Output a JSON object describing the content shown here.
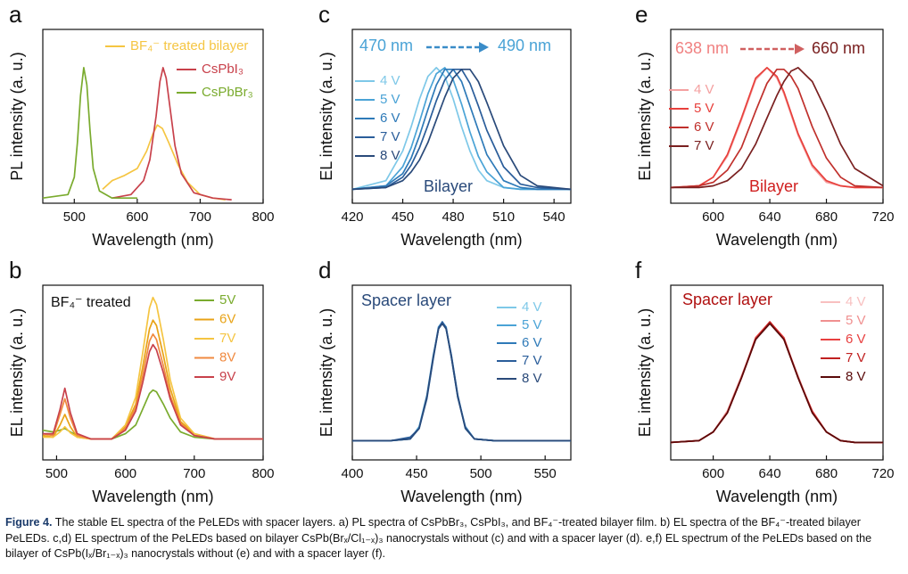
{
  "chart_data": [
    {
      "type": "line",
      "label": "a",
      "xlabel": "Wavelength (nm)",
      "ylabel": "PL intensity (a. u.)",
      "xlim": [
        450,
        800
      ],
      "xticks": [
        500,
        600,
        700,
        800
      ],
      "ylim": [
        0,
        1
      ],
      "series": [
        {
          "name": "BF₄⁻ treated bilayer",
          "color": "#f5c542",
          "x": [
            545,
            560,
            580,
            600,
            615,
            625,
            632,
            640,
            650,
            665,
            680,
            700,
            720,
            740
          ],
          "values": [
            0.08,
            0.13,
            0.16,
            0.2,
            0.3,
            0.4,
            0.45,
            0.43,
            0.35,
            0.22,
            0.12,
            0.05,
            0.03,
            0.02
          ]
        },
        {
          "name": "CsPbI₃",
          "color": "#c8414b",
          "x": [
            560,
            590,
            610,
            620,
            630,
            636,
            641,
            646,
            652,
            660,
            670,
            690,
            720,
            750
          ],
          "values": [
            0.03,
            0.05,
            0.13,
            0.25,
            0.5,
            0.7,
            0.78,
            0.72,
            0.55,
            0.33,
            0.17,
            0.06,
            0.03,
            0.02
          ]
        },
        {
          "name": "CsPbBr₃",
          "color": "#7aab2e",
          "x": [
            450,
            490,
            500,
            505,
            510,
            515,
            520,
            525,
            530,
            540,
            560,
            600
          ],
          "values": [
            0.03,
            0.05,
            0.15,
            0.35,
            0.62,
            0.78,
            0.68,
            0.42,
            0.2,
            0.07,
            0.03,
            0.03
          ]
        }
      ]
    },
    {
      "type": "line",
      "label": "b",
      "xlabel": "Wavelength (nm)",
      "ylabel": "EL intensity (a. u.)",
      "xlim": [
        480,
        800
      ],
      "xticks": [
        500,
        600,
        700,
        800
      ],
      "ylim": [
        0,
        1
      ],
      "annotations": [
        "BF₄⁻ treated"
      ],
      "x": [
        480,
        495,
        505,
        512,
        520,
        530,
        550,
        580,
        600,
        615,
        625,
        635,
        640,
        645,
        655,
        665,
        680,
        700,
        730,
        760,
        800
      ],
      "series": [
        {
          "name": "5V",
          "color": "#7aab2e",
          "values": [
            0.17,
            0.16,
            0.17,
            0.18,
            0.16,
            0.14,
            0.12,
            0.12,
            0.15,
            0.2,
            0.29,
            0.38,
            0.4,
            0.39,
            0.32,
            0.24,
            0.16,
            0.13,
            0.12,
            0.12,
            0.12
          ]
        },
        {
          "name": "6V",
          "color": "#e8a317",
          "values": [
            0.14,
            0.13,
            0.2,
            0.26,
            0.19,
            0.13,
            0.12,
            0.12,
            0.19,
            0.32,
            0.53,
            0.75,
            0.8,
            0.77,
            0.6,
            0.41,
            0.22,
            0.15,
            0.12,
            0.12,
            0.12
          ]
        },
        {
          "name": "7V",
          "color": "#f5c542",
          "values": [
            0.13,
            0.13,
            0.16,
            0.19,
            0.155,
            0.13,
            0.12,
            0.12,
            0.2,
            0.36,
            0.61,
            0.87,
            0.93,
            0.89,
            0.69,
            0.46,
            0.24,
            0.15,
            0.12,
            0.12,
            0.12
          ]
        },
        {
          "name": "8V",
          "color": "#f08a40",
          "values": [
            0.15,
            0.14,
            0.26,
            0.35,
            0.24,
            0.14,
            0.12,
            0.12,
            0.18,
            0.3,
            0.48,
            0.68,
            0.72,
            0.69,
            0.54,
            0.37,
            0.21,
            0.14,
            0.12,
            0.12,
            0.12
          ]
        },
        {
          "name": "9V",
          "color": "#c8414b",
          "values": [
            0.15,
            0.15,
            0.29,
            0.41,
            0.27,
            0.15,
            0.12,
            0.12,
            0.17,
            0.28,
            0.44,
            0.62,
            0.66,
            0.63,
            0.5,
            0.35,
            0.2,
            0.14,
            0.12,
            0.12,
            0.12
          ]
        }
      ]
    },
    {
      "type": "line",
      "label": "c",
      "xlabel": "Wavelength (nm)",
      "ylabel": "EL intensity (a. u.)",
      "xlim": [
        420,
        550
      ],
      "xticks": [
        420,
        450,
        480,
        510,
        540
      ],
      "ylim": [
        0,
        1
      ],
      "annotations": [
        "470 nm",
        "490 nm",
        "Bilayer"
      ],
      "x": [
        420,
        440,
        450,
        455,
        460,
        465,
        470,
        475,
        480,
        485,
        490,
        495,
        500,
        510,
        520,
        530,
        550
      ],
      "series": [
        {
          "name": "4 V",
          "color": "#7ec8e8",
          "values": [
            0.08,
            0.13,
            0.3,
            0.44,
            0.6,
            0.73,
            0.78,
            0.73,
            0.6,
            0.44,
            0.3,
            0.19,
            0.13,
            0.09,
            0.08,
            0.08,
            0.08
          ]
        },
        {
          "name": "5 V",
          "color": "#4aa3d6",
          "values": [
            0.08,
            0.1,
            0.21,
            0.32,
            0.47,
            0.63,
            0.745,
            0.78,
            0.71,
            0.57,
            0.41,
            0.27,
            0.18,
            0.09,
            0.08,
            0.08,
            0.08
          ]
        },
        {
          "name": "6 V",
          "color": "#2e7ab8",
          "values": [
            0.08,
            0.1,
            0.17,
            0.26,
            0.39,
            0.54,
            0.68,
            0.77,
            0.77,
            0.7,
            0.56,
            0.42,
            0.28,
            0.13,
            0.09,
            0.08,
            0.08
          ]
        },
        {
          "name": "7 V",
          "color": "#2a5d9a",
          "values": [
            0.08,
            0.09,
            0.15,
            0.22,
            0.32,
            0.45,
            0.59,
            0.71,
            0.77,
            0.77,
            0.69,
            0.56,
            0.42,
            0.21,
            0.11,
            0.09,
            0.08
          ]
        },
        {
          "name": "8 V",
          "color": "#2a4a7a",
          "values": [
            0.08,
            0.09,
            0.13,
            0.18,
            0.25,
            0.35,
            0.48,
            0.61,
            0.72,
            0.77,
            0.77,
            0.7,
            0.58,
            0.33,
            0.16,
            0.1,
            0.08
          ]
        }
      ]
    },
    {
      "type": "line",
      "label": "d",
      "xlabel": "Wavelength (nm)",
      "ylabel": "EL intensity (a. u.)",
      "xlim": [
        400,
        570
      ],
      "xticks": [
        400,
        450,
        500,
        550
      ],
      "ylim": [
        0,
        1
      ],
      "annotations": [
        "Spacer layer"
      ],
      "x": [
        400,
        430,
        445,
        452,
        458,
        463,
        467,
        470,
        473,
        477,
        482,
        488,
        495,
        510,
        530,
        570
      ],
      "series": [
        {
          "name": "4 V",
          "color": "#7ec8e8",
          "values": [
            0.11,
            0.11,
            0.12,
            0.18,
            0.36,
            0.59,
            0.75,
            0.79,
            0.75,
            0.59,
            0.36,
            0.18,
            0.12,
            0.11,
            0.11,
            0.11
          ]
        },
        {
          "name": "5 V",
          "color": "#4aa3d6",
          "values": [
            0.11,
            0.11,
            0.12,
            0.19,
            0.37,
            0.6,
            0.75,
            0.79,
            0.75,
            0.6,
            0.37,
            0.18,
            0.12,
            0.11,
            0.11,
            0.11
          ]
        },
        {
          "name": "6 V",
          "color": "#2e7ab8",
          "values": [
            0.11,
            0.11,
            0.12,
            0.18,
            0.36,
            0.59,
            0.76,
            0.79,
            0.76,
            0.59,
            0.36,
            0.19,
            0.12,
            0.11,
            0.11,
            0.11
          ]
        },
        {
          "name": "7 V",
          "color": "#2a5d9a",
          "values": [
            0.11,
            0.11,
            0.13,
            0.18,
            0.35,
            0.58,
            0.75,
            0.79,
            0.75,
            0.6,
            0.37,
            0.18,
            0.12,
            0.11,
            0.11,
            0.11
          ]
        },
        {
          "name": "8 V",
          "color": "#2a4a7a",
          "values": [
            0.11,
            0.11,
            0.12,
            0.18,
            0.36,
            0.59,
            0.75,
            0.78,
            0.75,
            0.59,
            0.36,
            0.18,
            0.12,
            0.11,
            0.11,
            0.11
          ]
        }
      ]
    },
    {
      "type": "line",
      "label": "e",
      "xlabel": "Wavelength (nm)",
      "ylabel": "EL intensity (a. u.)",
      "xlim": [
        570,
        720
      ],
      "xticks": [
        600,
        640,
        680,
        720
      ],
      "ylim": [
        0,
        1
      ],
      "annotations": [
        "638 nm",
        "660 nm",
        "Bilayer"
      ],
      "x": [
        570,
        590,
        600,
        610,
        620,
        630,
        638,
        645,
        650,
        655,
        660,
        670,
        680,
        690,
        700,
        720
      ],
      "series": [
        {
          "name": "4 V",
          "color": "#f4a0a0",
          "values": [
            0.09,
            0.1,
            0.15,
            0.27,
            0.48,
            0.71,
            0.78,
            0.72,
            0.63,
            0.51,
            0.39,
            0.21,
            0.12,
            0.1,
            0.09,
            0.09
          ]
        },
        {
          "name": "5 V",
          "color": "#e8403c",
          "values": [
            0.09,
            0.1,
            0.15,
            0.28,
            0.49,
            0.72,
            0.78,
            0.73,
            0.64,
            0.52,
            0.4,
            0.22,
            0.13,
            0.1,
            0.09,
            0.09
          ]
        },
        {
          "name": "6 V",
          "color": "#c0302c",
          "values": [
            0.09,
            0.1,
            0.12,
            0.19,
            0.32,
            0.53,
            0.69,
            0.77,
            0.77,
            0.73,
            0.66,
            0.44,
            0.26,
            0.15,
            0.1,
            0.09
          ]
        },
        {
          "name": "7 V",
          "color": "#7a2020",
          "values": [
            0.09,
            0.09,
            0.1,
            0.13,
            0.2,
            0.34,
            0.49,
            0.62,
            0.7,
            0.76,
            0.78,
            0.7,
            0.53,
            0.34,
            0.2,
            0.1
          ]
        }
      ]
    },
    {
      "type": "line",
      "label": "f",
      "xlabel": "Wavelength (nm)",
      "ylabel": "EL intensity (a. u.)",
      "xlim": [
        570,
        720
      ],
      "xticks": [
        600,
        640,
        680,
        720
      ],
      "ylim": [
        0,
        1
      ],
      "annotations": [
        "Spacer layer"
      ],
      "x": [
        570,
        590,
        600,
        610,
        620,
        630,
        640,
        650,
        660,
        670,
        680,
        690,
        700,
        720
      ],
      "series": [
        {
          "name": "4 V",
          "color": "#f8c0c0",
          "values": [
            0.1,
            0.11,
            0.16,
            0.27,
            0.47,
            0.69,
            0.79,
            0.69,
            0.47,
            0.27,
            0.16,
            0.11,
            0.1,
            0.1
          ]
        },
        {
          "name": "5 V",
          "color": "#f09090",
          "values": [
            0.1,
            0.11,
            0.16,
            0.28,
            0.48,
            0.69,
            0.79,
            0.69,
            0.48,
            0.27,
            0.16,
            0.11,
            0.1,
            0.1
          ]
        },
        {
          "name": "6 V",
          "color": "#e84040",
          "values": [
            0.1,
            0.11,
            0.16,
            0.27,
            0.47,
            0.7,
            0.79,
            0.7,
            0.47,
            0.28,
            0.16,
            0.11,
            0.1,
            0.1
          ]
        },
        {
          "name": "7 V",
          "color": "#c02020",
          "values": [
            0.1,
            0.11,
            0.16,
            0.27,
            0.47,
            0.69,
            0.79,
            0.69,
            0.47,
            0.27,
            0.16,
            0.11,
            0.1,
            0.1
          ]
        },
        {
          "name": "8 V",
          "color": "#5a0a0a",
          "values": [
            0.1,
            0.11,
            0.16,
            0.27,
            0.47,
            0.69,
            0.78,
            0.69,
            0.47,
            0.27,
            0.16,
            0.11,
            0.1,
            0.1
          ]
        }
      ]
    }
  ],
  "caption": {
    "label": "Figure 4.",
    "text": "The stable EL spectra of the PeLEDs with spacer layers. a) PL spectra of CsPbBr₃, CsPbI₃, and BF₄⁻-treated bilayer film. b) EL spectra of the BF₄⁻-treated bilayer PeLEDs. c,d) EL spectrum of the PeLEDs based on bilayer CsPb(Brₓ/Cl₁₋ₓ)₃ nanocrystals without (c) and with a spacer layer (d). e,f) EL spectrum of the PeLEDs based on the bilayer of CsPb(Iₓ/Br₁₋ₓ)₃ nanocrystals without (e) and with a spacer layer (f)."
  }
}
